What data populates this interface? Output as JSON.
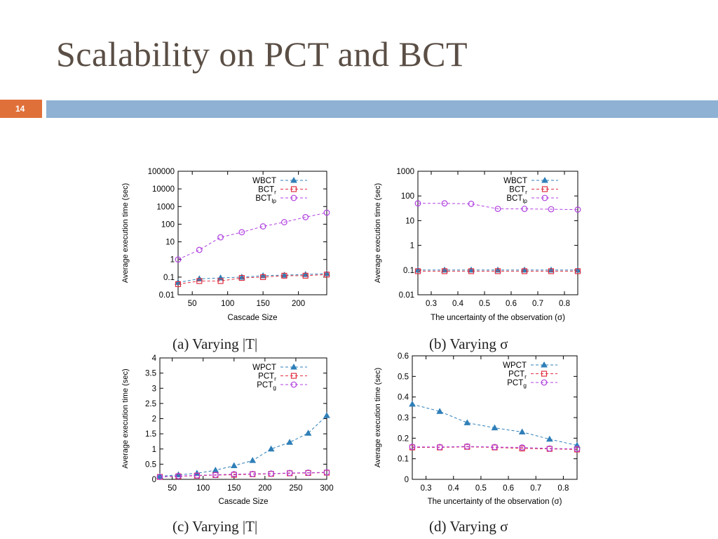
{
  "slide": {
    "title": "Scalability on PCT and BCT",
    "page_number": "14",
    "colors": {
      "title": "#5a4e45",
      "badge": "#e0703a",
      "rule": "#8fb1d3"
    }
  },
  "captions": [
    "(a)  Varying |T|",
    "(b)  Varying σ",
    "(c)  Varying |T|",
    "(d)  Varying σ"
  ],
  "chart_data": [
    {
      "id": "a",
      "type": "line",
      "yscale": "log",
      "xlim": [
        30,
        240
      ],
      "ylim": [
        0.01,
        100000
      ],
      "xticks": [
        50,
        100,
        150,
        200
      ],
      "yticks": [
        0.01,
        0.1,
        1,
        10,
        100,
        1000,
        10000,
        100000
      ],
      "ytick_labels": [
        "0.01",
        "0.1",
        "1",
        "10",
        "100",
        "1000",
        "10000",
        "100000"
      ],
      "xlabel": "Cascade Size",
      "ylabel": "Average execution time (sec)",
      "legend_position": "top-right",
      "series": [
        {
          "name": "WBCT",
          "sub": "",
          "color": "#2f7fb8",
          "marker": "triangle",
          "x": [
            30,
            60,
            90,
            120,
            150,
            180,
            210,
            240
          ],
          "y": [
            0.05,
            0.08,
            0.09,
            0.1,
            0.12,
            0.13,
            0.14,
            0.16
          ]
        },
        {
          "name": "BCT",
          "sub": "r",
          "color": "#e03040",
          "marker": "square",
          "x": [
            30,
            60,
            90,
            120,
            150,
            180,
            210,
            240
          ],
          "y": [
            0.04,
            0.06,
            0.06,
            0.09,
            0.1,
            0.12,
            0.12,
            0.14
          ]
        },
        {
          "name": "BCT",
          "sub": "lp",
          "color": "#b040e0",
          "marker": "circle",
          "x": [
            30,
            60,
            90,
            120,
            150,
            180,
            210,
            240
          ],
          "y": [
            1,
            3.5,
            18,
            35,
            75,
            130,
            250,
            450
          ]
        }
      ]
    },
    {
      "id": "b",
      "type": "line",
      "yscale": "log",
      "xlim": [
        0.25,
        0.85
      ],
      "ylim": [
        0.01,
        1000
      ],
      "xticks": [
        0.3,
        0.4,
        0.5,
        0.6,
        0.7,
        0.8
      ],
      "xtick_labels": [
        "0.3",
        "0.4",
        "0.5",
        "0.6",
        "0.7",
        "0.8"
      ],
      "yticks": [
        0.01,
        0.1,
        1,
        10,
        100,
        1000
      ],
      "ytick_labels": [
        "0.01",
        "0.1",
        "1",
        "10",
        "100",
        "1000"
      ],
      "xlabel": "The uncertainty of the observation (σ)",
      "ylabel": "Average execution time (sec)",
      "legend_position": "top-right",
      "series": [
        {
          "name": "WBCT",
          "sub": "",
          "color": "#2f7fb8",
          "marker": "triangle",
          "x": [
            0.25,
            0.35,
            0.45,
            0.55,
            0.65,
            0.75,
            0.85
          ],
          "y": [
            0.1,
            0.1,
            0.1,
            0.1,
            0.1,
            0.1,
            0.1
          ]
        },
        {
          "name": "BCT",
          "sub": "r",
          "color": "#e03040",
          "marker": "square",
          "x": [
            0.25,
            0.35,
            0.45,
            0.55,
            0.65,
            0.75,
            0.85
          ],
          "y": [
            0.09,
            0.09,
            0.09,
            0.09,
            0.09,
            0.09,
            0.09
          ]
        },
        {
          "name": "BCT",
          "sub": "lp",
          "color": "#b040e0",
          "marker": "circle",
          "x": [
            0.25,
            0.35,
            0.45,
            0.55,
            0.65,
            0.75,
            0.85
          ],
          "y": [
            50,
            50,
            48,
            30,
            30,
            29,
            28
          ]
        }
      ]
    },
    {
      "id": "c",
      "type": "line",
      "yscale": "linear",
      "xlim": [
        30,
        300
      ],
      "ylim": [
        0,
        4
      ],
      "xticks": [
        50,
        100,
        150,
        200,
        250,
        300
      ],
      "yticks": [
        0,
        0.5,
        1,
        1.5,
        2,
        2.5,
        3,
        3.5,
        4
      ],
      "ytick_labels": [
        "0",
        "0.5",
        "1",
        "1.5",
        "2",
        "2.5",
        "3",
        "3.5",
        "4"
      ],
      "xlabel": "Cascade Size",
      "ylabel": "Average execution time (sec)",
      "legend_position": "top-right",
      "series": [
        {
          "name": "WPCT",
          "sub": "",
          "color": "#2f7fb8",
          "marker": "triangle",
          "x": [
            30,
            60,
            90,
            120,
            150,
            180,
            210,
            240,
            270,
            300
          ],
          "y": [
            0.1,
            0.15,
            0.2,
            0.3,
            0.45,
            0.62,
            1.0,
            1.22,
            1.52,
            2.1
          ]
        },
        {
          "name": "PCT",
          "sub": "r",
          "color": "#e03040",
          "marker": "square",
          "x": [
            30,
            60,
            90,
            120,
            150,
            180,
            210,
            240,
            270,
            300
          ],
          "y": [
            0.08,
            0.1,
            0.12,
            0.14,
            0.15,
            0.17,
            0.18,
            0.2,
            0.21,
            0.22
          ]
        },
        {
          "name": "PCT",
          "sub": "g",
          "color": "#b040e0",
          "marker": "circle",
          "x": [
            30,
            60,
            90,
            120,
            150,
            180,
            210,
            240,
            270,
            300
          ],
          "y": [
            0.08,
            0.11,
            0.13,
            0.15,
            0.17,
            0.18,
            0.19,
            0.21,
            0.22,
            0.23
          ]
        }
      ]
    },
    {
      "id": "d",
      "type": "line",
      "yscale": "linear",
      "xlim": [
        0.25,
        0.85
      ],
      "ylim": [
        0,
        0.6
      ],
      "xticks": [
        0.3,
        0.4,
        0.5,
        0.6,
        0.7,
        0.8
      ],
      "xtick_labels": [
        "0.3",
        "0.4",
        "0.5",
        "0.6",
        "0.7",
        "0.8"
      ],
      "yticks": [
        0,
        0.1,
        0.2,
        0.3,
        0.4,
        0.5,
        0.6
      ],
      "ytick_labels": [
        "0",
        "0.1",
        "0.2",
        "0.3",
        "0.4",
        "0.5",
        "0.6"
      ],
      "xlabel": "The uncertainty of the observation (σ)",
      "ylabel": "Average execution time (sec)",
      "legend_position": "top-right",
      "series": [
        {
          "name": "WPCT",
          "sub": "",
          "color": "#2f7fb8",
          "marker": "triangle",
          "x": [
            0.25,
            0.35,
            0.45,
            0.55,
            0.65,
            0.75,
            0.85
          ],
          "y": [
            0.365,
            0.33,
            0.275,
            0.25,
            0.23,
            0.195,
            0.165
          ]
        },
        {
          "name": "PCT",
          "sub": "r",
          "color": "#e03040",
          "marker": "square",
          "x": [
            0.25,
            0.35,
            0.45,
            0.55,
            0.65,
            0.75,
            0.85
          ],
          "y": [
            0.155,
            0.155,
            0.158,
            0.155,
            0.15,
            0.148,
            0.145
          ]
        },
        {
          "name": "PCT",
          "sub": "g",
          "color": "#b040e0",
          "marker": "circle",
          "x": [
            0.25,
            0.35,
            0.45,
            0.55,
            0.65,
            0.75,
            0.85
          ],
          "y": [
            0.158,
            0.157,
            0.16,
            0.157,
            0.155,
            0.15,
            0.148
          ]
        }
      ]
    }
  ]
}
